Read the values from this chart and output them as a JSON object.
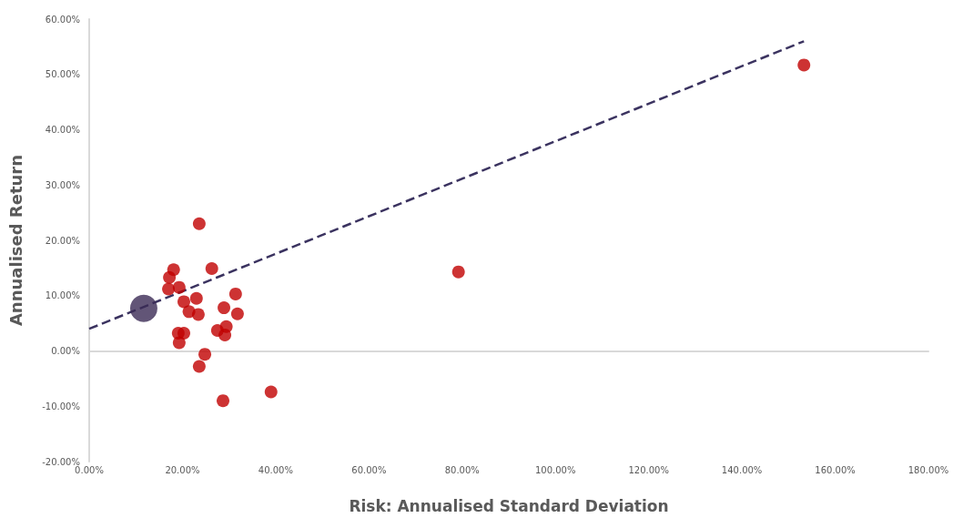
{
  "chart_data": {
    "type": "scatter",
    "xlabel": "Risk: Annualised Standard Deviation",
    "ylabel": "Annualised Return",
    "xlim": [
      0,
      180
    ],
    "ylim": [
      -20,
      60
    ],
    "xticks": [
      {
        "value": 0,
        "label": "0.00%"
      },
      {
        "value": 20,
        "label": "20.00%"
      },
      {
        "value": 40,
        "label": "40.00%"
      },
      {
        "value": 60,
        "label": "60.00%"
      },
      {
        "value": 80,
        "label": "80.00%"
      },
      {
        "value": 100,
        "label": "100.00%"
      },
      {
        "value": 120,
        "label": "120.00%"
      },
      {
        "value": 140,
        "label": "140.00%"
      },
      {
        "value": 160,
        "label": "160.00%"
      },
      {
        "value": 180,
        "label": "180.00%"
      }
    ],
    "yticks": [
      {
        "value": -20,
        "label": "-20.00%"
      },
      {
        "value": -10,
        "label": "-10.00%"
      },
      {
        "value": 0,
        "label": "0.00%"
      },
      {
        "value": 10,
        "label": "10.00%"
      },
      {
        "value": 20,
        "label": "20.00%"
      },
      {
        "value": 30,
        "label": "30.00%"
      },
      {
        "value": 40,
        "label": "40.00%"
      },
      {
        "value": 50,
        "label": "50.00%"
      },
      {
        "value": 60,
        "label": "60.00%"
      }
    ],
    "marker": "circle",
    "series": [
      {
        "color": "#c00000",
        "x": [
          153.3,
          79.2,
          39.0,
          28.7,
          23.6,
          18.1,
          17.2,
          17.0,
          19.3,
          26.3,
          31.4,
          23.0,
          20.3,
          21.4,
          23.4,
          28.9,
          31.8,
          27.5,
          29.4,
          29.1,
          19.1,
          20.3,
          19.3,
          24.8,
          23.6
        ],
        "values": [
          51.7,
          14.3,
          -7.4,
          -9.0,
          23.0,
          14.7,
          13.3,
          11.2,
          11.5,
          14.9,
          10.3,
          9.5,
          8.9,
          7.1,
          6.6,
          7.8,
          6.7,
          3.7,
          4.4,
          2.9,
          3.2,
          3.2,
          1.5,
          -0.6,
          -2.8
        ]
      },
      {
        "color": "#3b2a55",
        "x": [
          11.7
        ],
        "values": [
          7.7
        ]
      },
      {
        "type": "line",
        "color": "#3b3360",
        "line_style": "dashed",
        "marker": "none",
        "x": [
          0,
          153.3
        ],
        "values": [
          4.0,
          56.0
        ]
      }
    ]
  }
}
